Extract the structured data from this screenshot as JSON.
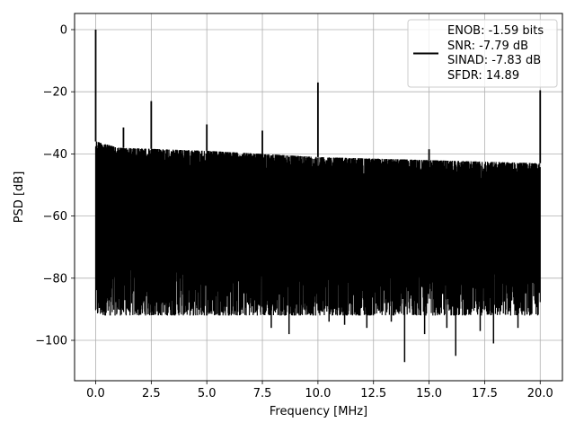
{
  "chart_data": {
    "type": "line",
    "title": "",
    "xlabel": "Frequency [MHz]",
    "ylabel": "PSD [dB]",
    "xlim": [
      -0.95,
      21.0
    ],
    "ylim": [
      -113.0,
      5.2
    ],
    "xticks": [
      0.0,
      2.5,
      5.0,
      7.5,
      10.0,
      12.5,
      15.0,
      17.5,
      20.0
    ],
    "xtick_labels": [
      "0.0",
      "2.5",
      "5.0",
      "7.5",
      "10.0",
      "12.5",
      "15.0",
      "17.5",
      "20.0"
    ],
    "yticks": [
      0,
      -20,
      -40,
      -60,
      -80,
      -100
    ],
    "ytick_labels": [
      "0",
      "−20",
      "−40",
      "−60",
      "−80",
      "−100"
    ],
    "grid": true,
    "legend_placement": "top-right",
    "series": [
      {
        "name": "ENOB: -1.59 bits\nSNR: -7.79 dB\nSINAD: -7.83 dB\nSFDR: 14.89",
        "color": "#000000",
        "noise_floor_top_db": [
          [
            0.05,
            -36
          ],
          [
            1.0,
            -38
          ],
          [
            5.0,
            -39
          ],
          [
            10.0,
            -41
          ],
          [
            15.0,
            -42
          ],
          [
            20.0,
            -43
          ]
        ],
        "noise_floor_bottom_db": -92,
        "spurs": [
          {
            "x": 0.0,
            "y": 0.0
          },
          {
            "x": 1.25,
            "y": -31.5
          },
          {
            "x": 2.5,
            "y": -23.0
          },
          {
            "x": 5.0,
            "y": -30.5
          },
          {
            "x": 7.5,
            "y": -32.5
          },
          {
            "x": 10.0,
            "y": -17.0
          },
          {
            "x": 15.0,
            "y": -38.5
          },
          {
            "x": 20.0,
            "y": -19.5
          }
        ],
        "dips": [
          {
            "x": 0.15,
            "y": -86
          },
          {
            "x": 0.65,
            "y": -92
          },
          {
            "x": 1.55,
            "y": -91
          },
          {
            "x": 2.1,
            "y": -90
          },
          {
            "x": 3.05,
            "y": -91
          },
          {
            "x": 4.4,
            "y": -92
          },
          {
            "x": 5.7,
            "y": -91
          },
          {
            "x": 6.0,
            "y": -92
          },
          {
            "x": 7.2,
            "y": -91
          },
          {
            "x": 7.9,
            "y": -96
          },
          {
            "x": 8.7,
            "y": -98
          },
          {
            "x": 9.6,
            "y": -91
          },
          {
            "x": 10.5,
            "y": -94
          },
          {
            "x": 11.2,
            "y": -95
          },
          {
            "x": 12.2,
            "y": -96
          },
          {
            "x": 13.3,
            "y": -94
          },
          {
            "x": 13.9,
            "y": -107
          },
          {
            "x": 14.8,
            "y": -98
          },
          {
            "x": 15.8,
            "y": -96
          },
          {
            "x": 16.2,
            "y": -105
          },
          {
            "x": 17.3,
            "y": -97
          },
          {
            "x": 17.9,
            "y": -101
          },
          {
            "x": 19.0,
            "y": -96
          }
        ]
      }
    ]
  },
  "legend": {
    "lines": [
      "ENOB: -1.59 bits",
      "SNR: -7.79 dB",
      "SINAD: -7.83 dB",
      "SFDR: 14.89"
    ]
  }
}
